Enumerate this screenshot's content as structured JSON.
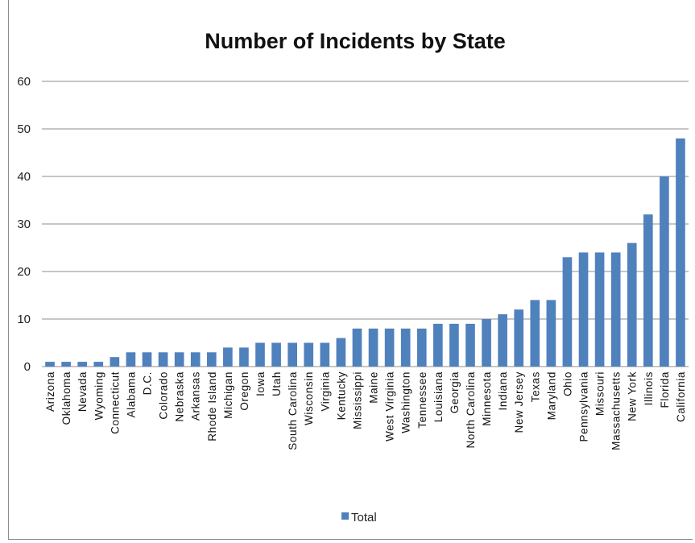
{
  "chart_data": {
    "type": "bar",
    "title": "Number of Incidents by State",
    "xlabel": "",
    "ylabel": "",
    "ylim": [
      0,
      60
    ],
    "yticks": [
      0,
      10,
      20,
      30,
      40,
      50,
      60
    ],
    "grid": true,
    "legend_position": "bottom",
    "bar_color": "#4F81BD",
    "categories": [
      "Arizona",
      "Oklahoma",
      "Nevada",
      "Wyoming",
      "Connecticut",
      "Alabama",
      "D.C.",
      "Colorado",
      "Nebraska",
      "Arkansas",
      "Rhode Island",
      "Michigan",
      "Oregon",
      "Iowa",
      "Utah",
      "South Carolina",
      "Wisconsin",
      "Virginia",
      "Kentucky",
      "Mississippi",
      "Maine",
      "West Virginia",
      "Washington",
      "Tennessee",
      "Louisiana",
      "Georgia",
      "North Carolina",
      "Minnesota",
      "Indiana",
      "New Jersey",
      "Texas",
      "Maryland",
      "Ohio",
      "Pennsylvania",
      "Missouri",
      "Massachusetts",
      "New York",
      "Illinois",
      "Florida",
      "California"
    ],
    "series": [
      {
        "name": "Total",
        "values": [
          1,
          1,
          1,
          1,
          2,
          3,
          3,
          3,
          3,
          3,
          3,
          4,
          4,
          5,
          5,
          5,
          5,
          5,
          6,
          8,
          8,
          8,
          8,
          8,
          9,
          9,
          9,
          10,
          11,
          12,
          14,
          14,
          23,
          24,
          24,
          24,
          26,
          32,
          40,
          48
        ]
      }
    ]
  }
}
